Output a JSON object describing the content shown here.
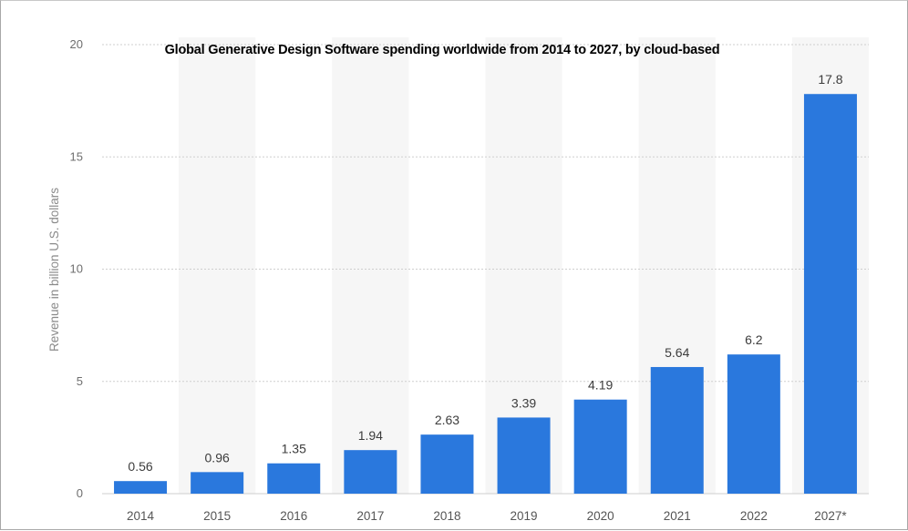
{
  "chart_data": {
    "type": "bar",
    "title": "Global Generative Design Software spending worldwide from 2014 to 2027, by cloud-based",
    "xlabel": "",
    "ylabel": "Revenue in billion U.S. dollars",
    "categories": [
      "2014",
      "2015",
      "2016",
      "2017",
      "2018",
      "2019",
      "2020",
      "2021",
      "2022",
      "2027*"
    ],
    "values": [
      0.56,
      0.96,
      1.35,
      1.94,
      2.63,
      3.39,
      4.19,
      5.64,
      6.2,
      17.8
    ],
    "value_labels": [
      "0.56",
      "0.96",
      "1.35",
      "1.94",
      "2.63",
      "3.39",
      "4.19",
      "5.64",
      "6.2",
      "17.8"
    ],
    "ylim": [
      0,
      20
    ],
    "yticks": [
      0,
      5,
      10,
      15,
      20
    ],
    "ytick_labels": [
      "0",
      "5",
      "10",
      "15",
      "20"
    ],
    "grid": true,
    "legend": false,
    "colors": {
      "bar": "#2a78dd",
      "band": "#f6f6f6",
      "grid": "#cfcfcf"
    }
  }
}
